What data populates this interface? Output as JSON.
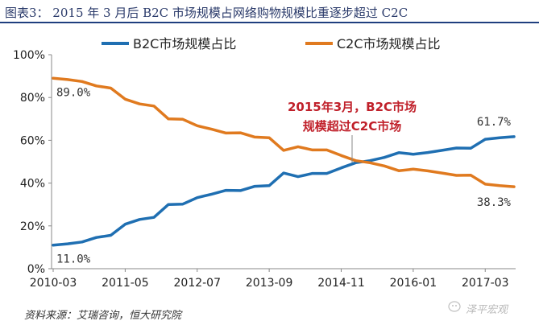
{
  "title": "图表3：  2015 年 3 月后 B2C 市场规模占网络购物规模比重逐步超过 C2C",
  "source": "资料来源：艾瑞咨询，恒大研究院",
  "watermark": "泽平宏观",
  "colors": {
    "b2c": "#1f6fb2",
    "c2c": "#e07a1f",
    "annotation": "#c0202a",
    "title": "#2a3a6a"
  },
  "chart_data": {
    "type": "line",
    "title": "",
    "xlabel": "",
    "ylabel": "",
    "x_ticks": [
      "2010-03",
      "2011-05",
      "2012-07",
      "2013-09",
      "2014-11",
      "2016-01",
      "2017-03"
    ],
    "y_ticks": [
      "0%",
      "20%",
      "40%",
      "60%",
      "80%",
      "100%"
    ],
    "ylim": [
      0,
      100
    ],
    "legend": "top",
    "series": [
      {
        "name": "B2C市场规模占比",
        "values": [
          11.0,
          11.6,
          12.5,
          14.6,
          15.6,
          20.8,
          23.0,
          24.0,
          30.0,
          30.2,
          33.2,
          34.8,
          36.6,
          36.5,
          38.5,
          38.8,
          44.7,
          43.0,
          44.5,
          44.5,
          47.1,
          49.5,
          50.5,
          52.0,
          54.2,
          53.5,
          54.3,
          55.3,
          56.4,
          56.3,
          60.5,
          61.2,
          61.7
        ]
      },
      {
        "name": "C2C市场规模占比",
        "values": [
          89.0,
          88.4,
          87.5,
          85.4,
          84.4,
          79.2,
          77.0,
          76.0,
          70.0,
          69.8,
          66.8,
          65.2,
          63.4,
          63.5,
          61.5,
          61.2,
          55.3,
          57.0,
          55.5,
          55.5,
          52.9,
          50.5,
          49.5,
          48.0,
          45.8,
          46.5,
          45.7,
          44.7,
          43.6,
          43.7,
          39.5,
          38.8,
          38.3
        ]
      }
    ],
    "data_labels": {
      "b2c_start": "11.0%",
      "b2c_end": "61.7%",
      "c2c_start": "89.0%",
      "c2c_end": "38.3%"
    },
    "annotation": [
      "2015年3月，B2C市场",
      "规模超过C2C市场"
    ]
  }
}
